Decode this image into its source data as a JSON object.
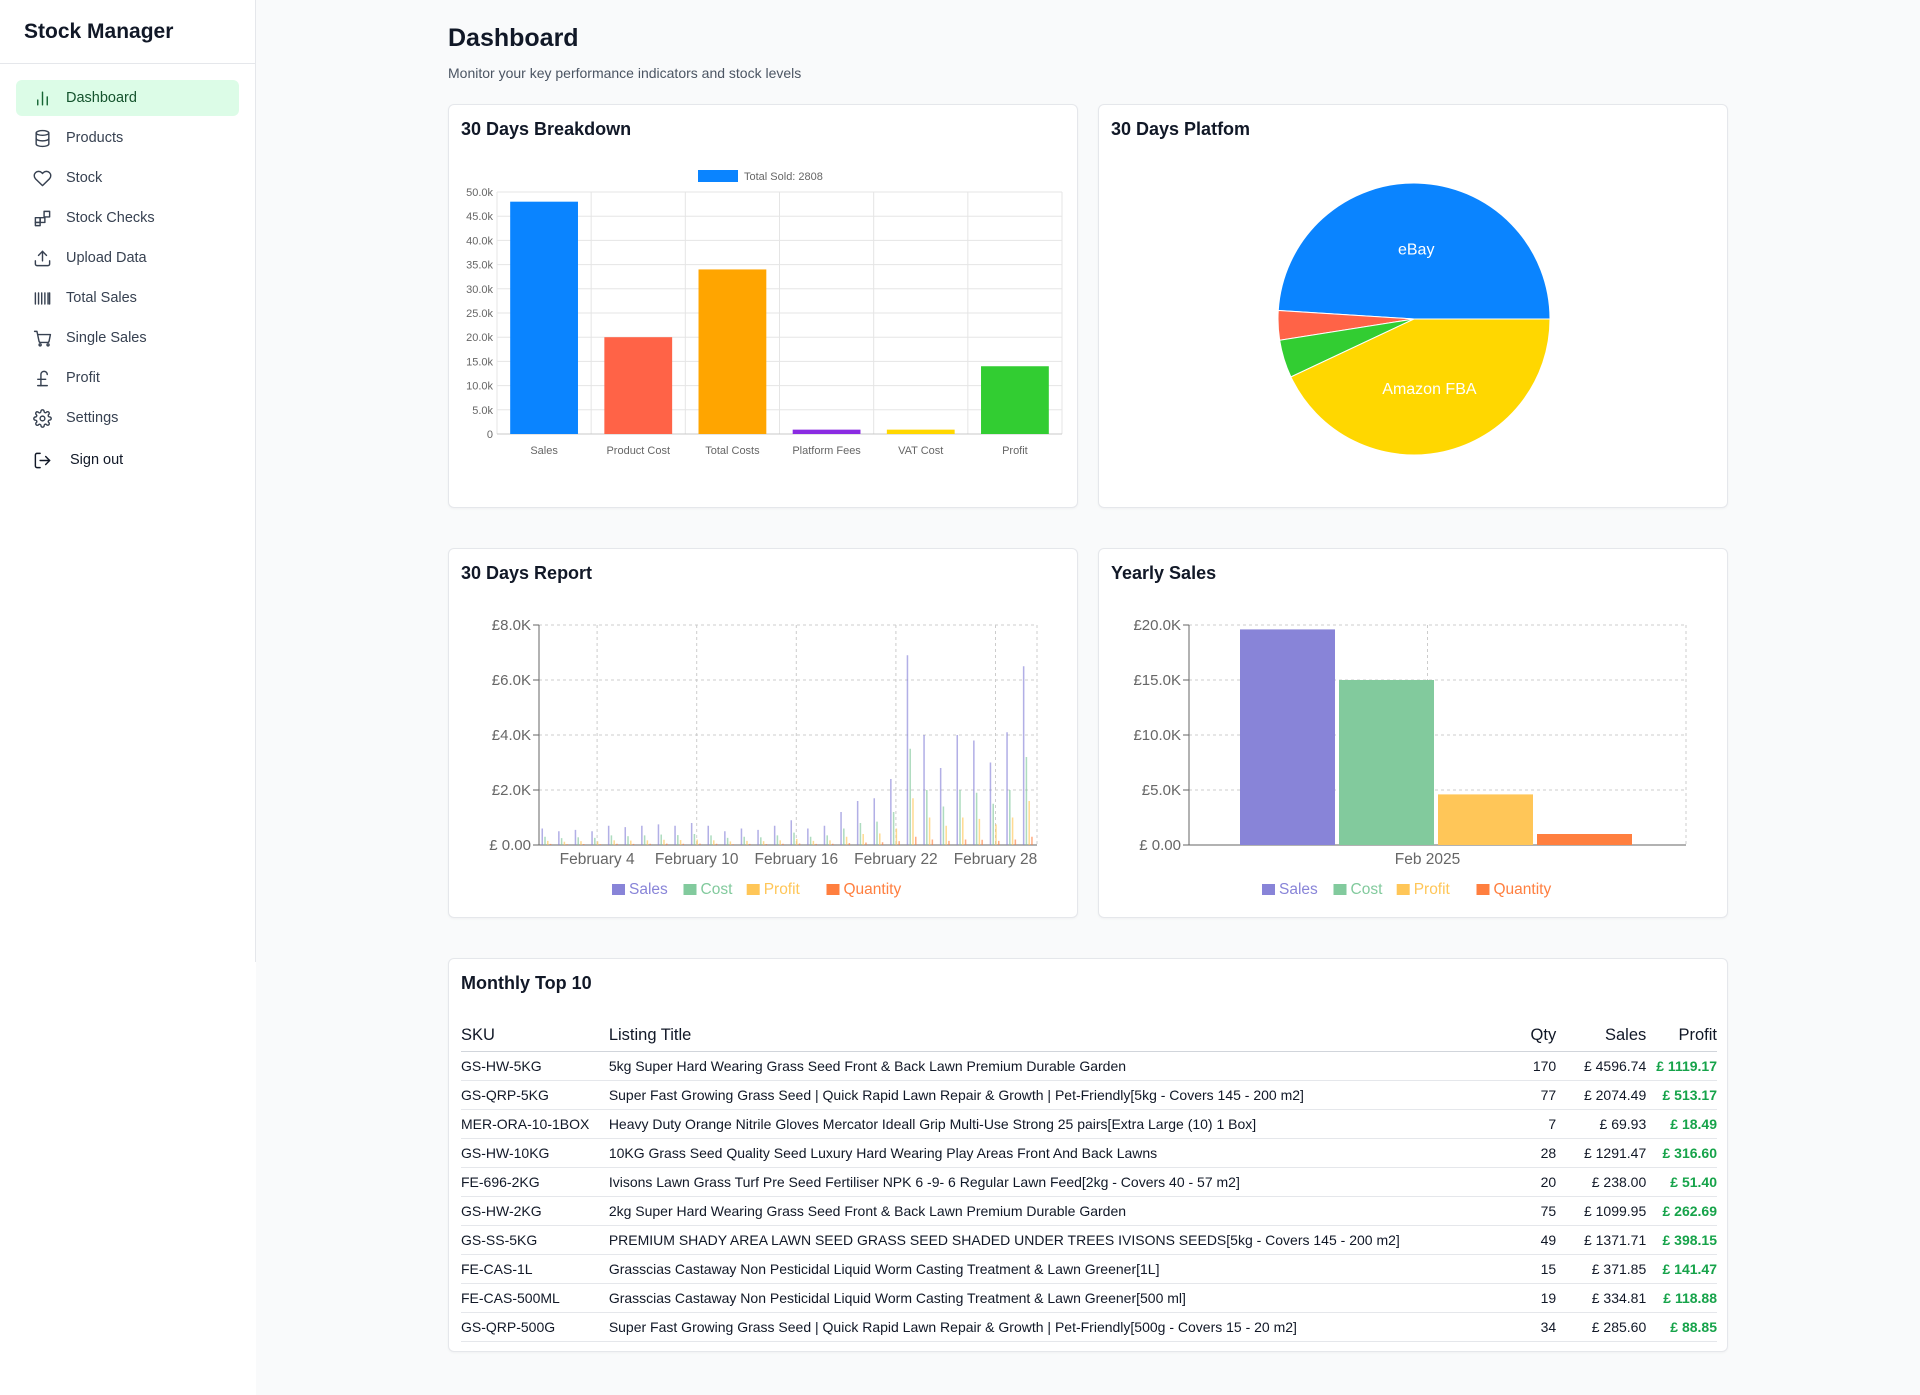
{
  "app": {
    "title": "Stock Manager"
  },
  "sidebar": {
    "items": [
      {
        "label": "Dashboard",
        "icon": "bar-chart-icon",
        "active": true
      },
      {
        "label": "Products",
        "icon": "database-icon"
      },
      {
        "label": "Stock",
        "icon": "heart-icon"
      },
      {
        "label": "Stock Checks",
        "icon": "blocks-icon"
      },
      {
        "label": "Upload Data",
        "icon": "upload-icon"
      },
      {
        "label": "Total Sales",
        "icon": "barcode-icon"
      },
      {
        "label": "Single Sales",
        "icon": "cart-icon"
      },
      {
        "label": "Profit",
        "icon": "pound-icon"
      },
      {
        "label": "Settings",
        "icon": "gear-icon"
      }
    ],
    "signout": {
      "label": "Sign out",
      "icon": "signout-icon"
    }
  },
  "page": {
    "title": "Dashboard",
    "subtitle": "Monitor your key performance indicators and stock levels"
  },
  "cards": {
    "breakdown": {
      "title": "30 Days Breakdown"
    },
    "platform": {
      "title": "30 Days Platfom"
    },
    "report": {
      "title": "30 Days Report"
    },
    "yearly": {
      "title": "Yearly Sales"
    },
    "top10": {
      "title": "Monthly Top 10"
    }
  },
  "colors": {
    "sales_blue": "#0a84ff",
    "product_cost": "#ff6347",
    "total_costs": "#ffa500",
    "platform_fees": "#8a2be2",
    "vat_cost": "#ffd700",
    "profit_green": "#32cd32",
    "recharts_sales": "#8884d8",
    "recharts_cost": "#82ca9d",
    "recharts_profit": "#ffc658",
    "recharts_quantity": "#ff7f3f"
  },
  "chart_data": [
    {
      "id": "breakdown",
      "type": "bar",
      "legend": "Total Sold: 2808",
      "categories": [
        "Sales",
        "Product Cost",
        "Total Costs",
        "Platform Fees",
        "VAT Cost",
        "Profit"
      ],
      "values": [
        48000,
        20000,
        34000,
        900,
        900,
        14000
      ],
      "colors": [
        "#0a84ff",
        "#ff6347",
        "#ffa500",
        "#8a2be2",
        "#ffd700",
        "#32cd32"
      ],
      "yticks": [
        "0",
        "5.0k",
        "10.0k",
        "15.0k",
        "20.0k",
        "25.0k",
        "30.0k",
        "35.0k",
        "40.0k",
        "45.0k",
        "50.0k"
      ],
      "ylim": [
        0,
        50000
      ],
      "grid": true
    },
    {
      "id": "platform",
      "type": "pie",
      "slices": [
        {
          "label": "eBay",
          "value": 49,
          "color": "#0a84ff"
        },
        {
          "label": "",
          "value": 3.5,
          "color": "#ff6347"
        },
        {
          "label": "",
          "value": 4.5,
          "color": "#32cd32"
        },
        {
          "label": "Amazon FBA",
          "value": 43,
          "color": "#ffd700"
        }
      ]
    },
    {
      "id": "report",
      "type": "bar",
      "xticks": [
        "February 4",
        "February 10",
        "February 16",
        "February 22",
        "February 28"
      ],
      "yticks": [
        "£ 0.00",
        "£2.0K",
        "£4.0K",
        "£6.0K",
        "£8.0K"
      ],
      "ylim": [
        0,
        8000
      ],
      "legend": [
        "Sales",
        "Cost",
        "Profit",
        "Quantity"
      ],
      "series": [
        {
          "name": "Sales",
          "color": "#8884d8",
          "values": [
            600,
            500,
            550,
            500,
            700,
            650,
            700,
            750,
            700,
            800,
            700,
            500,
            600,
            550,
            700,
            900,
            600,
            700,
            1200,
            1600,
            1700,
            2400,
            6900,
            4000,
            2800,
            4000,
            3800,
            3000,
            4100,
            6500
          ]
        },
        {
          "name": "Cost",
          "color": "#82ca9d",
          "values": [
            300,
            250,
            280,
            260,
            350,
            320,
            350,
            380,
            360,
            400,
            350,
            260,
            300,
            280,
            350,
            450,
            300,
            350,
            600,
            800,
            850,
            1200,
            3500,
            2000,
            1400,
            2000,
            1900,
            1500,
            2000,
            3200
          ]
        },
        {
          "name": "Profit",
          "color": "#ffc658",
          "values": [
            150,
            120,
            140,
            130,
            170,
            160,
            170,
            190,
            180,
            200,
            170,
            130,
            150,
            140,
            170,
            220,
            150,
            170,
            300,
            400,
            420,
            600,
            1700,
            1000,
            700,
            1000,
            950,
            750,
            1000,
            1600
          ]
        },
        {
          "name": "Quantity",
          "color": "#ff7f3f",
          "values": [
            40,
            30,
            35,
            30,
            45,
            40,
            45,
            50,
            45,
            50,
            45,
            30,
            40,
            35,
            45,
            55,
            40,
            45,
            70,
            90,
            100,
            140,
            300,
            200,
            150,
            200,
            190,
            150,
            200,
            300
          ]
        }
      ]
    },
    {
      "id": "yearly",
      "type": "bar",
      "categories": [
        "Feb 2025"
      ],
      "yticks": [
        "£ 0.00",
        "£5.0K",
        "£10.0K",
        "£15.0K",
        "£20.0K"
      ],
      "ylim": [
        0,
        20000
      ],
      "legend": [
        "Sales",
        "Cost",
        "Profit",
        "Quantity"
      ],
      "series": [
        {
          "name": "Sales",
          "color": "#8884d8",
          "values": [
            19600
          ]
        },
        {
          "name": "Cost",
          "color": "#82ca9d",
          "values": [
            15000
          ]
        },
        {
          "name": "Profit",
          "color": "#ffc658",
          "values": [
            4600
          ]
        },
        {
          "name": "Quantity",
          "color": "#ff7f3f",
          "values": [
            1000
          ]
        }
      ]
    }
  ],
  "top10": {
    "headers": {
      "sku": "SKU",
      "title": "Listing Title",
      "qty": "Qty",
      "sales": "Sales",
      "profit": "Profit"
    },
    "rows": [
      {
        "sku": "GS-HW-5KG",
        "title": "5kg Super Hard Wearing Grass Seed Front & Back Lawn Premium Durable Garden",
        "qty": "170",
        "sales": "£ 4596.74",
        "profit": "£ 1119.17"
      },
      {
        "sku": "GS-QRP-5KG",
        "title": "Super Fast Growing Grass Seed | Quick Rapid Lawn Repair & Growth | Pet-Friendly[5kg - Covers 145 - 200 m2]",
        "qty": "77",
        "sales": "£ 2074.49",
        "profit": "£ 513.17"
      },
      {
        "sku": "MER-ORA-10-1BOX",
        "title": "Heavy Duty Orange Nitrile Gloves Mercator Ideall Grip Multi-Use Strong 25 pairs[Extra Large (10) 1 Box]",
        "qty": "7",
        "sales": "£ 69.93",
        "profit": "£ 18.49"
      },
      {
        "sku": "GS-HW-10KG",
        "title": "10KG Grass Seed Quality Seed Luxury Hard Wearing Play Areas Front And Back Lawns",
        "qty": "28",
        "sales": "£ 1291.47",
        "profit": "£ 316.60"
      },
      {
        "sku": "FE-696-2KG",
        "title": "Ivisons Lawn Grass Turf Pre Seed Fertiliser NPK 6 -9- 6 Regular Lawn Feed[2kg - Covers 40 - 57 m2]",
        "qty": "20",
        "sales": "£ 238.00",
        "profit": "£ 51.40"
      },
      {
        "sku": "GS-HW-2KG",
        "title": "2kg Super Hard Wearing Grass Seed Front & Back Lawn Premium Durable Garden",
        "qty": "75",
        "sales": "£ 1099.95",
        "profit": "£ 262.69"
      },
      {
        "sku": "GS-SS-5KG",
        "title": "PREMIUM SHADY AREA LAWN SEED GRASS SEED SHADED UNDER TREES IVISONS SEEDS[5kg - Covers 145 - 200 m2]",
        "qty": "49",
        "sales": "£ 1371.71",
        "profit": "£ 398.15"
      },
      {
        "sku": "FE-CAS-1L",
        "title": "Grasscias Castaway Non Pesticidal Liquid Worm Casting Treatment & Lawn Greener[1L]",
        "qty": "15",
        "sales": "£ 371.85",
        "profit": "£ 141.47"
      },
      {
        "sku": "FE-CAS-500ML",
        "title": "Grasscias Castaway Non Pesticidal Liquid Worm Casting Treatment & Lawn Greener[500 ml]",
        "qty": "19",
        "sales": "£ 334.81",
        "profit": "£ 118.88"
      },
      {
        "sku": "GS-QRP-500G",
        "title": "Super Fast Growing Grass Seed | Quick Rapid Lawn Repair & Growth | Pet-Friendly[500g - Covers 15 - 20 m2]",
        "qty": "34",
        "sales": "£ 285.60",
        "profit": "£ 88.85"
      }
    ]
  }
}
